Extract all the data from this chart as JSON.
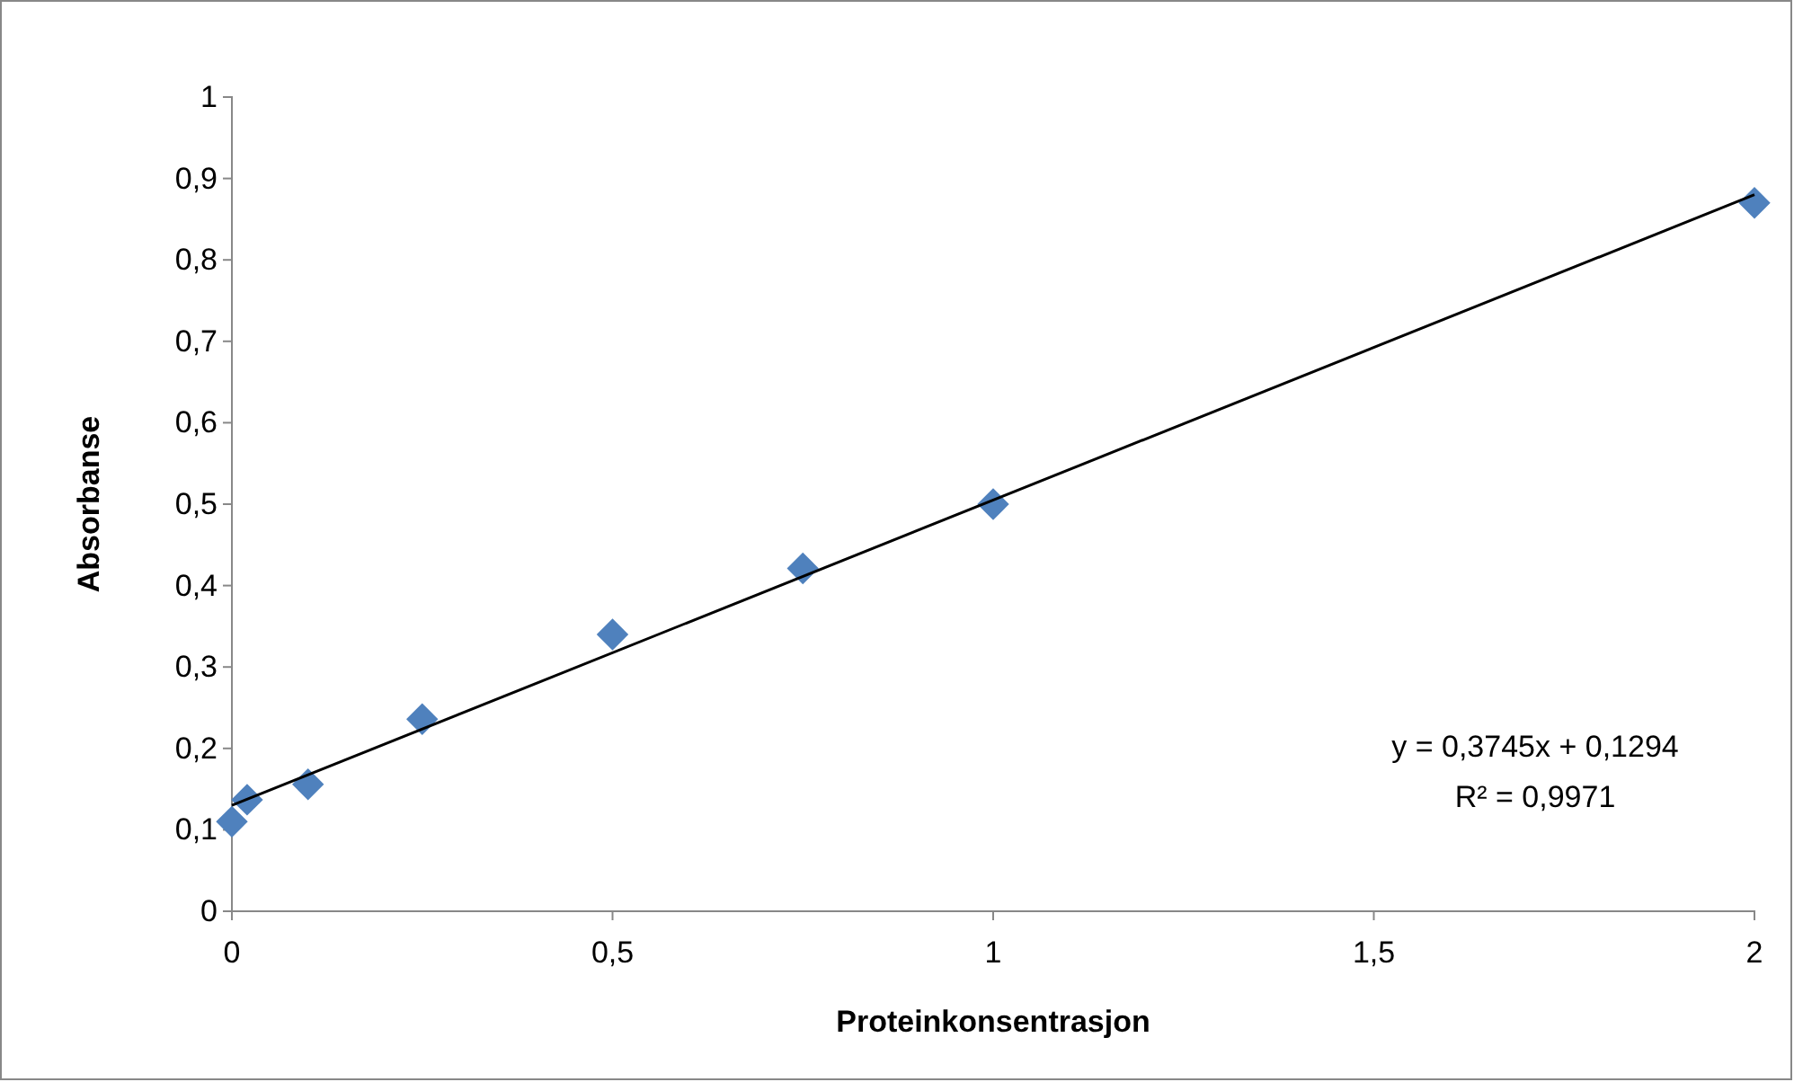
{
  "chart_data": {
    "type": "scatter",
    "xlabel": "Proteinkonsentrasjon",
    "ylabel": "Absorbanse",
    "marker": "diamond",
    "xlim": [
      0,
      2
    ],
    "ylim": [
      0,
      1
    ],
    "xticks": [
      0,
      {
        "value": 0.5,
        "label": "0,5"
      },
      1,
      {
        "value": 1.5,
        "label": "1,5"
      },
      2
    ],
    "yticks": [
      0,
      {
        "value": 0.1,
        "label": "0,1"
      },
      {
        "value": 0.2,
        "label": "0,2"
      },
      {
        "value": 0.3,
        "label": "0,3"
      },
      {
        "value": 0.4,
        "label": "0,4"
      },
      {
        "value": 0.5,
        "label": "0,5"
      },
      {
        "value": 0.6,
        "label": "0,6"
      },
      {
        "value": 0.7,
        "label": "0,7"
      },
      {
        "value": 0.8,
        "label": "0,8"
      },
      {
        "value": 0.9,
        "label": "0,9"
      },
      1
    ],
    "grid": false,
    "series": [
      {
        "color": "#4f81bd",
        "x": [
          0,
          0.02,
          0.1,
          0.25,
          0.5,
          0.75,
          1,
          2
        ],
        "values": [
          0.11,
          0.137,
          0.156,
          0.236,
          0.34,
          0.421,
          0.5,
          0.87
        ]
      },
      {
        "type": "line",
        "marker": "none",
        "color": "#000000",
        "x": [
          0,
          2
        ],
        "values": [
          0.13,
          0.88
        ]
      }
    ],
    "annotations": [
      "y = 0,3745x + 0,1294",
      "R² = 0,9971"
    ]
  }
}
